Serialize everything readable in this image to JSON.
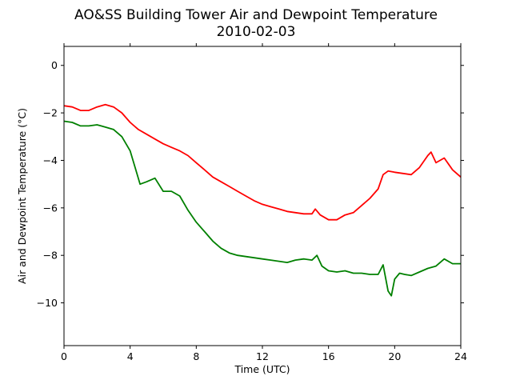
{
  "chart_data": {
    "type": "line",
    "title": "AO&SS Building Tower Air and Dewpoint Temperature",
    "subtitle": "2010-02-03",
    "xlabel": "Time (UTC)",
    "ylabel": "Air and Dewpoint Temperature (°C)",
    "xlim": [
      0,
      24
    ],
    "ylim": [
      -11.8,
      0.8
    ],
    "x_ticks": [
      0,
      4,
      8,
      12,
      16,
      20,
      24
    ],
    "y_ticks": [
      0,
      -2,
      -4,
      -6,
      -8,
      -10
    ],
    "x_tick_labels": [
      "0",
      "4",
      "8",
      "12",
      "16",
      "20",
      "24"
    ],
    "y_tick_labels": [
      "0",
      "−2",
      "−4",
      "−6",
      "−8",
      "−10"
    ],
    "grid": false,
    "series": [
      {
        "color": "#ff0000",
        "x": [
          0,
          0.5,
          1,
          1.5,
          2,
          2.5,
          3,
          3.5,
          4,
          4.5,
          5,
          5.5,
          6,
          6.5,
          7,
          7.5,
          8,
          8.5,
          9,
          9.5,
          10,
          10.5,
          11,
          11.5,
          12,
          12.5,
          13,
          13.5,
          14,
          14.5,
          15,
          15.2,
          15.5,
          16,
          16.5,
          17,
          17.5,
          18,
          18.5,
          19,
          19.3,
          19.6,
          20,
          20.5,
          21,
          21.5,
          22,
          22.2,
          22.5,
          23,
          23.5,
          24
        ],
        "y": [
          -1.7,
          -1.75,
          -1.9,
          -1.9,
          -1.75,
          -1.65,
          -1.75,
          -2.0,
          -2.4,
          -2.7,
          -2.9,
          -3.1,
          -3.3,
          -3.45,
          -3.6,
          -3.8,
          -4.1,
          -4.4,
          -4.7,
          -4.9,
          -5.1,
          -5.3,
          -5.5,
          -5.7,
          -5.85,
          -5.95,
          -6.05,
          -6.15,
          -6.2,
          -6.25,
          -6.25,
          -6.05,
          -6.3,
          -6.5,
          -6.5,
          -6.3,
          -6.2,
          -5.9,
          -5.6,
          -5.2,
          -4.6,
          -4.45,
          -4.5,
          -4.55,
          -4.6,
          -4.3,
          -3.8,
          -3.65,
          -4.1,
          -3.9,
          -4.4,
          -4.7
        ]
      },
      {
        "color": "#008000",
        "x": [
          0,
          0.5,
          1,
          1.5,
          2,
          2.5,
          3,
          3.5,
          4,
          4.3,
          4.6,
          5,
          5.5,
          6,
          6.5,
          7,
          7.5,
          8,
          8.5,
          9,
          9.5,
          10,
          10.5,
          11,
          11.5,
          12,
          12.5,
          13,
          13.5,
          14,
          14.5,
          15,
          15.3,
          15.6,
          16,
          16.5,
          17,
          17.5,
          18,
          18.5,
          19,
          19.3,
          19.6,
          19.8,
          20,
          20.3,
          20.6,
          21,
          21.5,
          22,
          22.5,
          23,
          23.5,
          24
        ],
        "y": [
          -2.35,
          -2.4,
          -2.55,
          -2.55,
          -2.5,
          -2.6,
          -2.7,
          -3.0,
          -3.6,
          -4.3,
          -5.0,
          -4.9,
          -4.75,
          -5.3,
          -5.3,
          -5.5,
          -6.1,
          -6.6,
          -7.0,
          -7.4,
          -7.7,
          -7.9,
          -8.0,
          -8.05,
          -8.1,
          -8.15,
          -8.2,
          -8.25,
          -8.3,
          -8.2,
          -8.15,
          -8.2,
          -8.0,
          -8.45,
          -8.65,
          -8.7,
          -8.65,
          -8.75,
          -8.75,
          -8.8,
          -8.8,
          -8.4,
          -9.5,
          -9.7,
          -9.0,
          -8.75,
          -8.8,
          -8.85,
          -8.7,
          -8.55,
          -8.45,
          -8.15,
          -8.35,
          -8.35
        ]
      }
    ]
  }
}
